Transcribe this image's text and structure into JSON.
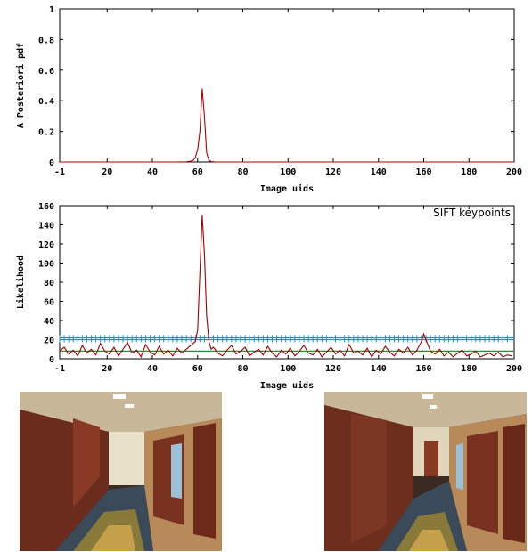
{
  "chart_data": [
    {
      "type": "line",
      "xlabel": "Image uids",
      "ylabel": "A Posteriori pdf",
      "xlim": [
        -1,
        200
      ],
      "ylim": [
        0,
        1
      ],
      "xticks": [
        -1,
        20,
        40,
        60,
        80,
        100,
        120,
        140,
        160,
        180,
        200
      ],
      "yticks": [
        0,
        0.2,
        0.4,
        0.6,
        0.8,
        1
      ],
      "ytick_labels": [
        "0",
        "0.2",
        "0.4",
        "0.6",
        "0.8",
        "1"
      ],
      "series": [
        {
          "color": "#b00000",
          "x": [
            -1,
            50,
            55,
            57,
            58,
            59,
            60,
            61,
            62,
            63,
            64,
            65,
            66,
            68,
            70,
            200
          ],
          "y": [
            0,
            0,
            0.001,
            0.005,
            0.01,
            0.03,
            0.08,
            0.2,
            0.48,
            0.3,
            0.06,
            0.01,
            0.003,
            0,
            0,
            0
          ]
        }
      ]
    },
    {
      "type": "line",
      "xlabel": "Image uids",
      "ylabel": "Likelihood",
      "xlim": [
        -1,
        200
      ],
      "ylim": [
        0,
        160
      ],
      "xticks": [
        -1,
        20,
        40,
        60,
        80,
        100,
        120,
        140,
        160,
        180,
        200
      ],
      "yticks": [
        0,
        20,
        40,
        60,
        80,
        100,
        120,
        140,
        160
      ],
      "ytick_labels": [
        "0",
        "20",
        "40",
        "60",
        "80",
        "100",
        "120",
        "140",
        "160"
      ],
      "annotation": "SIFT keypoints",
      "threshold_lines": [
        {
          "color": "#1a8fd0",
          "y": 22
        },
        {
          "color": "#1a8fd0",
          "y": 20
        },
        {
          "color": "#2e8b2e",
          "y": 8
        }
      ],
      "series": [
        {
          "color": "#a00000",
          "x": [
            -1,
            1,
            3,
            5,
            7,
            9,
            11,
            13,
            15,
            17,
            19,
            21,
            23,
            25,
            27,
            29,
            31,
            33,
            35,
            37,
            39,
            41,
            43,
            45,
            47,
            49,
            51,
            53,
            55,
            57,
            59,
            60,
            61,
            62,
            63,
            64,
            65,
            66,
            67,
            69,
            71,
            73,
            75,
            77,
            79,
            81,
            83,
            85,
            87,
            89,
            91,
            93,
            95,
            97,
            99,
            101,
            103,
            105,
            107,
            109,
            111,
            113,
            115,
            117,
            119,
            121,
            123,
            125,
            127,
            129,
            131,
            133,
            135,
            137,
            139,
            141,
            143,
            145,
            147,
            149,
            151,
            153,
            155,
            157,
            159,
            160,
            161,
            163,
            165,
            167,
            169,
            171,
            173,
            175,
            177,
            179,
            181,
            183,
            185,
            187,
            189,
            191,
            193,
            195,
            197,
            199
          ],
          "y": [
            8,
            12,
            5,
            9,
            3,
            14,
            6,
            10,
            4,
            16,
            8,
            5,
            12,
            3,
            10,
            17,
            6,
            9,
            2,
            15,
            7,
            4,
            13,
            5,
            9,
            3,
            11,
            6,
            10,
            14,
            18,
            30,
            90,
            150,
            110,
            45,
            18,
            10,
            12,
            6,
            3,
            9,
            14,
            5,
            8,
            12,
            3,
            7,
            10,
            4,
            13,
            6,
            2,
            9,
            5,
            11,
            3,
            8,
            14,
            6,
            4,
            10,
            2,
            7,
            12,
            5,
            9,
            3,
            15,
            6,
            8,
            4,
            11,
            2,
            9,
            5,
            13,
            7,
            3,
            10,
            6,
            12,
            4,
            9,
            18,
            26,
            20,
            8,
            5,
            10,
            3,
            7,
            2,
            6,
            9,
            3,
            5,
            8,
            2,
            4,
            6,
            3,
            7,
            2,
            4,
            3
          ]
        }
      ]
    }
  ],
  "photos": [
    {
      "name": "left-corridor"
    },
    {
      "name": "right-corridor"
    }
  ]
}
